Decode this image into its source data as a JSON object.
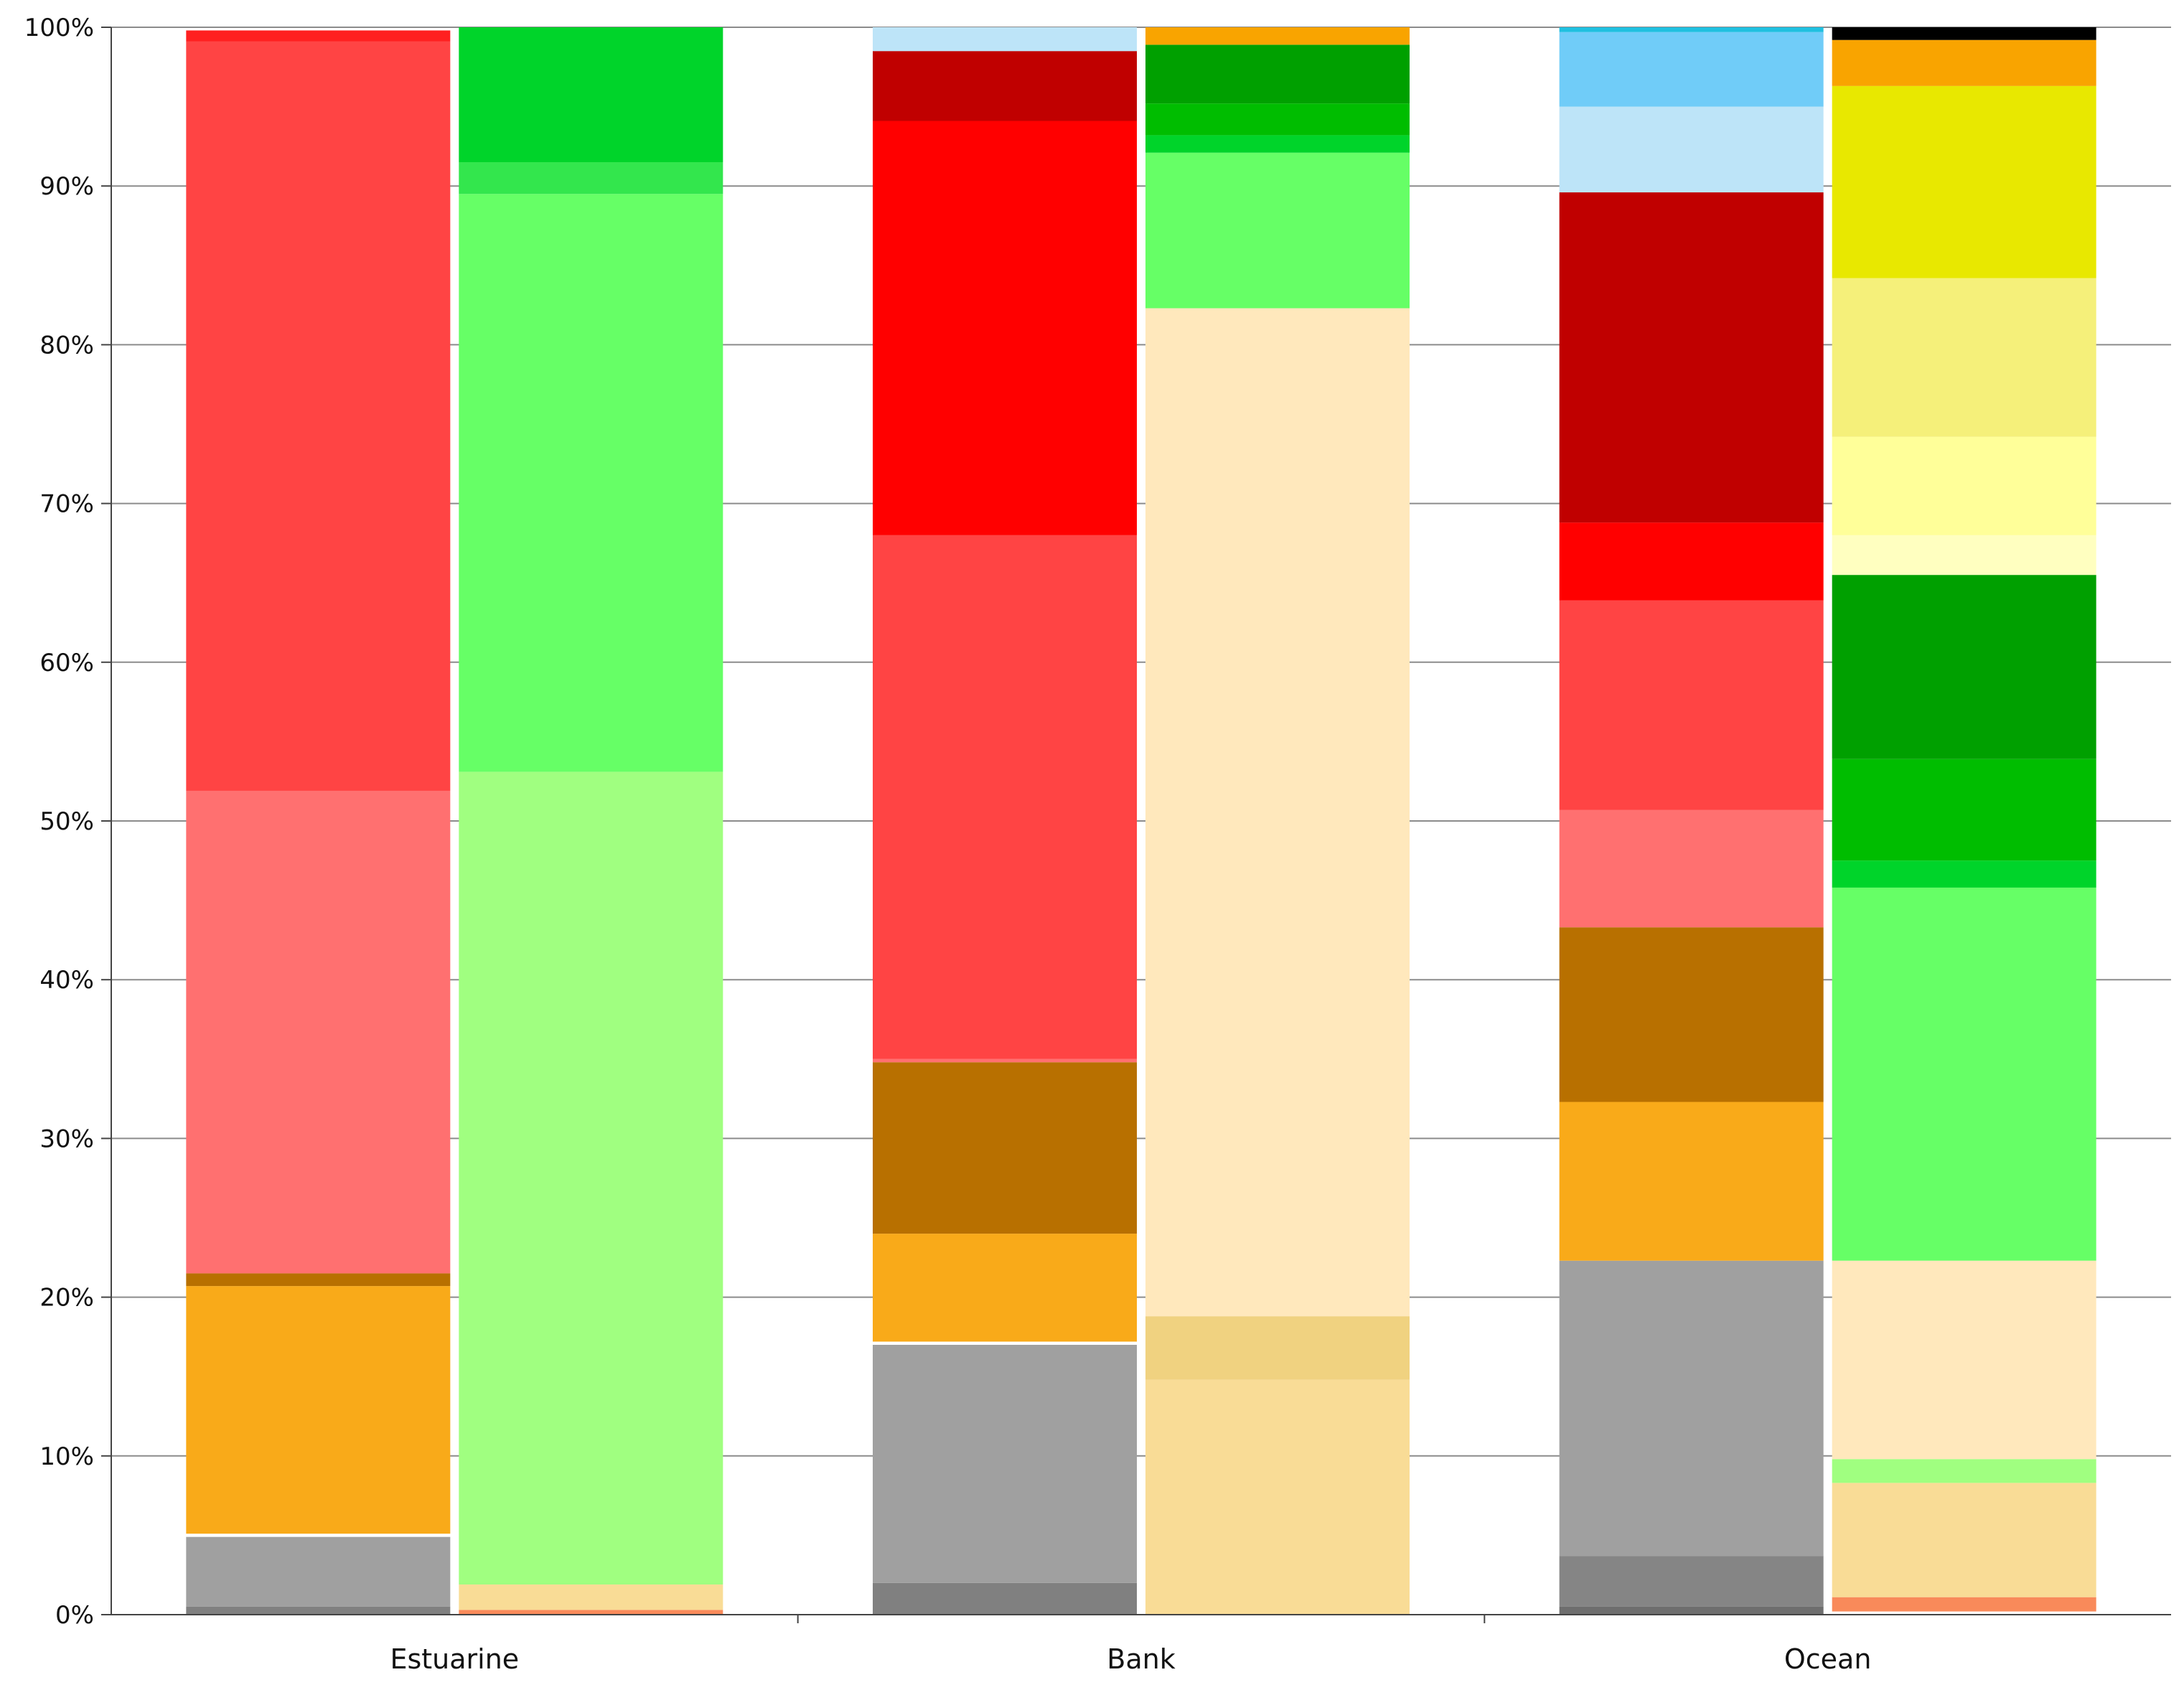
{
  "chart_data": {
    "type": "bar",
    "stacked": true,
    "normalized_percent": true,
    "categories": [
      "Estuarine",
      "Bank",
      "Ocean"
    ],
    "bars_per_category": 2,
    "ylim": [
      0,
      100
    ],
    "yticks": [
      "0%",
      "10%",
      "20%",
      "30%",
      "40%",
      "50%",
      "60%",
      "70%",
      "80%",
      "90%",
      "100%"
    ],
    "grid": true,
    "legend": "none",
    "title": "",
    "xlabel": "",
    "ylabel": "",
    "stacks": [
      {
        "category": "Estuarine",
        "segments": [
          {
            "value": 0.5,
            "color": "#808080"
          },
          {
            "value": 4.4,
            "color": "#a0a0a0"
          },
          {
            "value": 0.2,
            "color": "#ffffff"
          },
          {
            "value": 15.6,
            "color": "#f9aa19"
          },
          {
            "value": 0.8,
            "color": "#b87000"
          },
          {
            "value": 30.4,
            "color": "#ff7070"
          },
          {
            "value": 47.2,
            "color": "#ff4444"
          },
          {
            "value": 0.7,
            "color": "#ff2020"
          }
        ]
      },
      {
        "category": "Estuarine",
        "segments": [
          {
            "value": 0.3,
            "color": "#f98a5a"
          },
          {
            "value": 1.6,
            "color": "#f9dc96"
          },
          {
            "value": 51.2,
            "color": "#a0ff80"
          },
          {
            "value": 36.4,
            "color": "#66ff66"
          },
          {
            "value": 2.0,
            "color": "#33e64d"
          },
          {
            "value": 8.5,
            "color": "#00d42a"
          }
        ]
      },
      {
        "category": "Bank",
        "segments": [
          {
            "value": 2.0,
            "color": "#808080"
          },
          {
            "value": 15.0,
            "color": "#a0a0a0"
          },
          {
            "value": 0.2,
            "color": "#ffffff"
          },
          {
            "value": 6.8,
            "color": "#f9aa19"
          },
          {
            "value": 10.8,
            "color": "#b87000"
          },
          {
            "value": 0.2,
            "color": "#ff7070"
          },
          {
            "value": 33.0,
            "color": "#ff4444"
          },
          {
            "value": 26.1,
            "color": "#ff0000"
          },
          {
            "value": 4.4,
            "color": "#c00000"
          },
          {
            "value": 1.5,
            "color": "#bde4f8"
          }
        ]
      },
      {
        "category": "Bank",
        "segments": [
          {
            "value": 14.8,
            "color": "#f9dc96"
          },
          {
            "value": 4.0,
            "color": "#f0d280"
          },
          {
            "value": 63.5,
            "color": "#ffe8bc"
          },
          {
            "value": 9.8,
            "color": "#66ff66"
          },
          {
            "value": 1.1,
            "color": "#00d42a"
          },
          {
            "value": 2.0,
            "color": "#00bd00"
          },
          {
            "value": 3.7,
            "color": "#00a000"
          },
          {
            "value": 1.1,
            "color": "#f9a400"
          }
        ]
      },
      {
        "category": "Ocean",
        "segments": [
          {
            "value": 0.5,
            "color": "#6e6e6e"
          },
          {
            "value": 3.2,
            "color": "#858585"
          },
          {
            "value": 18.6,
            "color": "#a0a0a0"
          },
          {
            "value": 10.0,
            "color": "#f9aa19"
          },
          {
            "value": 11.0,
            "color": "#b87000"
          },
          {
            "value": 7.4,
            "color": "#ff7070"
          },
          {
            "value": 13.2,
            "color": "#ff4444"
          },
          {
            "value": 4.9,
            "color": "#ff0000"
          },
          {
            "value": 20.8,
            "color": "#c00000"
          },
          {
            "value": 5.4,
            "color": "#bde4f8"
          },
          {
            "value": 4.7,
            "color": "#70ccf8"
          },
          {
            "value": 0.3,
            "color": "#20c0e0"
          }
        ]
      },
      {
        "category": "Ocean",
        "segments": [
          {
            "value": 0.2,
            "color": "#ffffff"
          },
          {
            "value": 0.9,
            "color": "#f98a5a"
          },
          {
            "value": 7.2,
            "color": "#f9dc96"
          },
          {
            "value": 1.5,
            "color": "#a0ff80"
          },
          {
            "value": 12.5,
            "color": "#ffe8bc"
          },
          {
            "value": 23.5,
            "color": "#66ff66"
          },
          {
            "value": 1.7,
            "color": "#00d42a"
          },
          {
            "value": 6.4,
            "color": "#00bd00"
          },
          {
            "value": 11.6,
            "color": "#00a000"
          },
          {
            "value": 2.5,
            "color": "#ffffc0"
          },
          {
            "value": 6.2,
            "color": "#ffff99"
          },
          {
            "value": 10.0,
            "color": "#f5f07a"
          },
          {
            "value": 12.1,
            "color": "#e8e800"
          },
          {
            "value": 2.9,
            "color": "#f9a400"
          },
          {
            "value": 0.8,
            "color": "#000000"
          }
        ]
      }
    ]
  }
}
